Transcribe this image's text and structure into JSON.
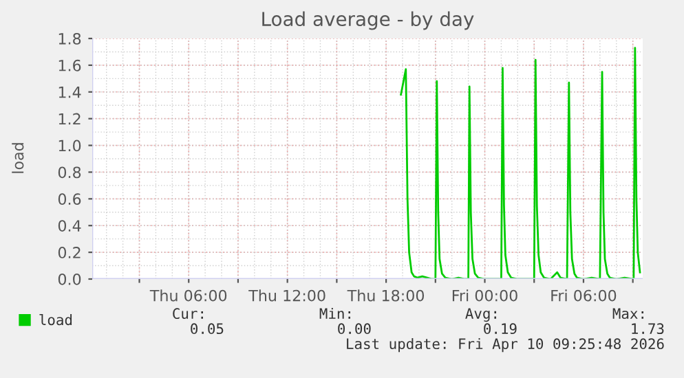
{
  "chart_data": {
    "type": "line",
    "title": "Load average - by day",
    "ylabel": "load",
    "x": [
      "2026-04-09T18:54",
      "2026-04-09T19:12",
      "2026-04-09T19:18",
      "2026-04-09T19:24",
      "2026-04-09T19:33",
      "2026-04-09T19:42",
      "2026-04-09T19:54",
      "2026-04-09T20:12",
      "2026-04-09T20:30",
      "2026-04-09T20:48",
      "2026-04-09T21:00",
      "2026-04-09T21:05",
      "2026-04-09T21:10",
      "2026-04-09T21:15",
      "2026-04-09T21:24",
      "2026-04-09T21:36",
      "2026-04-09T22:00",
      "2026-04-09T22:24",
      "2026-04-09T22:48",
      "2026-04-09T23:00",
      "2026-04-09T23:04",
      "2026-04-09T23:09",
      "2026-04-09T23:15",
      "2026-04-09T23:24",
      "2026-04-09T23:36",
      "2026-04-10T00:00",
      "2026-04-10T00:30",
      "2026-04-10T01:00",
      "2026-04-10T01:05",
      "2026-04-10T01:10",
      "2026-04-10T01:15",
      "2026-04-10T01:24",
      "2026-04-10T01:36",
      "2026-04-10T02:00",
      "2026-04-10T02:30",
      "2026-04-10T03:00",
      "2026-04-10T03:05",
      "2026-04-10T03:10",
      "2026-04-10T03:16",
      "2026-04-10T03:24",
      "2026-04-10T03:36",
      "2026-04-10T04:00",
      "2026-04-10T04:24",
      "2026-04-10T04:36",
      "2026-04-10T05:00",
      "2026-04-10T05:07",
      "2026-04-10T05:12",
      "2026-04-10T05:18",
      "2026-04-10T05:27",
      "2026-04-10T05:36",
      "2026-04-10T06:00",
      "2026-04-10T06:30",
      "2026-04-10T07:00",
      "2026-04-10T07:08",
      "2026-04-10T07:13",
      "2026-04-10T07:18",
      "2026-04-10T07:27",
      "2026-04-10T07:36",
      "2026-04-10T08:00",
      "2026-04-10T08:30",
      "2026-04-10T09:03",
      "2026-04-10T09:08",
      "2026-04-10T09:13",
      "2026-04-10T09:18",
      "2026-04-10T09:26"
    ],
    "series": [
      {
        "name": "load",
        "color": "#00cc00",
        "values": [
          1.38,
          1.57,
          0.6,
          0.2,
          0.05,
          0.02,
          0.01,
          0.02,
          0.01,
          0.0,
          0.0,
          1.48,
          0.5,
          0.15,
          0.04,
          0.01,
          0.0,
          0.01,
          0.0,
          0.0,
          1.44,
          0.5,
          0.15,
          0.04,
          0.01,
          0.0,
          0.0,
          0.0,
          1.58,
          0.55,
          0.18,
          0.05,
          0.01,
          0.0,
          0.0,
          0.0,
          1.64,
          0.55,
          0.18,
          0.05,
          0.01,
          0.0,
          0.05,
          0.01,
          0.0,
          1.47,
          0.5,
          0.15,
          0.04,
          0.01,
          0.0,
          0.01,
          0.0,
          1.55,
          0.5,
          0.15,
          0.04,
          0.01,
          0.0,
          0.01,
          0.0,
          1.73,
          0.6,
          0.2,
          0.05
        ]
      }
    ],
    "xlim": [
      "2026-04-09T00:08",
      "2026-04-10T09:36"
    ],
    "xticks": [
      {
        "value": "2026-04-09T03:00",
        "label": null
      },
      {
        "value": "2026-04-09T06:00",
        "label": "Thu 06:00"
      },
      {
        "value": "2026-04-09T09:00",
        "label": null
      },
      {
        "value": "2026-04-09T12:00",
        "label": "Thu 12:00"
      },
      {
        "value": "2026-04-09T15:00",
        "label": null
      },
      {
        "value": "2026-04-09T18:00",
        "label": "Thu 18:00"
      },
      {
        "value": "2026-04-09T21:00",
        "label": null
      },
      {
        "value": "2026-04-10T00:00",
        "label": "Fri 00:00"
      },
      {
        "value": "2026-04-10T03:00",
        "label": null
      },
      {
        "value": "2026-04-10T06:00",
        "label": "Fri 06:00"
      },
      {
        "value": "2026-04-10T09:00",
        "label": null
      }
    ],
    "ylim": [
      0,
      1.8
    ],
    "yticks": [
      {
        "value": 0,
        "label": "0.0"
      },
      {
        "value": 0.2,
        "label": "0.2"
      },
      {
        "value": 0.4,
        "label": "0.4"
      },
      {
        "value": 0.6,
        "label": "0.6"
      },
      {
        "value": 0.8,
        "label": "0.8"
      },
      {
        "value": 1.0,
        "label": "1.0"
      },
      {
        "value": 1.2,
        "label": "1.2"
      },
      {
        "value": 1.4,
        "label": "1.4"
      },
      {
        "value": 1.6,
        "label": "1.6"
      },
      {
        "value": 1.8,
        "label": "1.8"
      }
    ],
    "grid": true,
    "legend": "bottom left",
    "marker": "none",
    "line_style": "solid",
    "annotations": [
      "Cur:",
      "Min:",
      "Avg:",
      "Max:",
      "0.05",
      "0.00",
      "0.19",
      "1.73",
      "Last update: Fri Apr 10 09:25:48 2026"
    ]
  }
}
